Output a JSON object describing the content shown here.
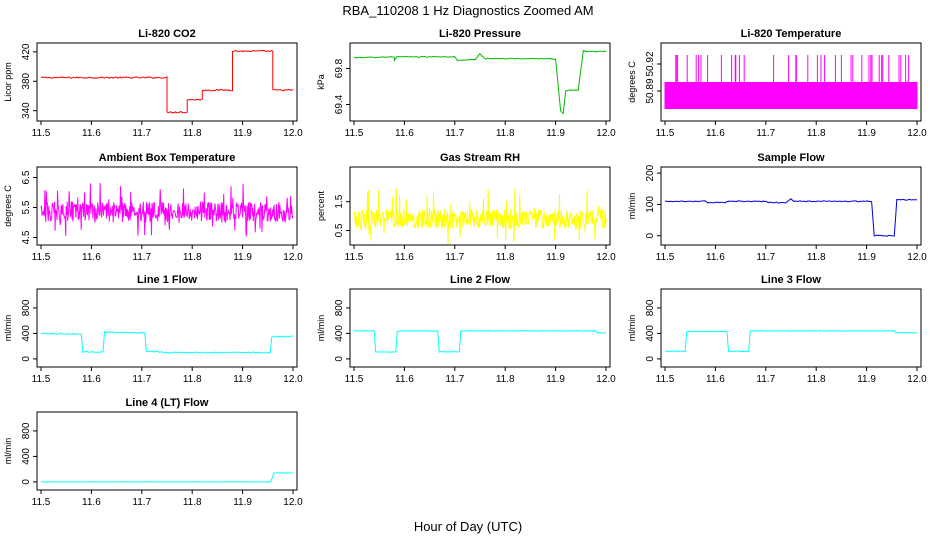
{
  "figure": {
    "title": "RBA_110208  1 Hz Diagnostics Zoomed AM",
    "xlabel": "Hour of Day (UTC)"
  },
  "chart_data": [
    {
      "type": "line",
      "title": "Li-820 CO2",
      "xlabel": "",
      "ylabel": "Licor ppm",
      "color": "#ff0000",
      "xlim": [
        11.5,
        12.0
      ],
      "ylim": [
        330,
        428
      ],
      "xticks": [
        "11.5",
        "11.6",
        "11.7",
        "11.8",
        "11.9",
        "12.0"
      ],
      "yticks": [
        "340",
        "380",
        "420"
      ],
      "series": [
        {
          "noise": 1.0,
          "points": [
            [
              11.5,
              385
            ],
            [
              11.75,
              385
            ],
            [
              11.75,
              338
            ],
            [
              11.79,
              338
            ],
            [
              11.79,
              355
            ],
            [
              11.82,
              355
            ],
            [
              11.82,
              368
            ],
            [
              11.88,
              368
            ],
            [
              11.88,
              421
            ],
            [
              11.96,
              421
            ],
            [
              11.96,
              368
            ],
            [
              12.0,
              368
            ]
          ]
        }
      ]
    },
    {
      "type": "line",
      "title": "Li-820 Pressure",
      "xlabel": "",
      "ylabel": "kPa",
      "color": "#00bb00",
      "xlim": [
        11.5,
        12.0
      ],
      "ylim": [
        69.25,
        70.05
      ],
      "xticks": [
        "11.5",
        "11.6",
        "11.7",
        "11.8",
        "11.9",
        "12.0"
      ],
      "yticks": [
        "69.4",
        "69.8"
      ],
      "series": [
        {
          "noise": 0.004,
          "points": [
            [
              11.5,
              69.92
            ],
            [
              11.58,
              69.93
            ],
            [
              11.58,
              69.89
            ],
            [
              11.585,
              69.93
            ],
            [
              11.7,
              69.93
            ],
            [
              11.705,
              69.89
            ],
            [
              11.74,
              69.9
            ],
            [
              11.75,
              69.96
            ],
            [
              11.76,
              69.91
            ],
            [
              11.89,
              69.91
            ],
            [
              11.9,
              69.9
            ],
            [
              11.91,
              69.33
            ],
            [
              11.915,
              69.3
            ],
            [
              11.92,
              69.55
            ],
            [
              11.93,
              69.56
            ],
            [
              11.945,
              69.56
            ],
            [
              11.955,
              70.0
            ],
            [
              11.96,
              69.99
            ],
            [
              12.0,
              69.99
            ]
          ]
        }
      ]
    },
    {
      "type": "line",
      "title": "Li-820 Temperature",
      "xlabel": "",
      "ylabel": "degrees C",
      "color": "#ff00ff",
      "xlim": [
        11.5,
        12.0
      ],
      "ylim": [
        50.86,
        50.94
      ],
      "xticks": [
        "11.5",
        "11.6",
        "11.7",
        "11.8",
        "11.9",
        "12.0"
      ],
      "yticks": [
        "50.89",
        "50.92"
      ],
      "series": [
        {
          "kind": "binary",
          "low": 50.87,
          "mid": 50.9,
          "high": 50.93,
          "points": []
        }
      ]
    },
    {
      "type": "line",
      "title": "Ambient Box Temperature",
      "xlabel": "",
      "ylabel": "degrees C",
      "color": "#ff00ff",
      "xlim": [
        11.5,
        12.0
      ],
      "ylim": [
        4.35,
        6.75
      ],
      "xticks": [
        "11.5",
        "11.6",
        "11.7",
        "11.8",
        "11.9",
        "12.0"
      ],
      "yticks": [
        "4.5",
        "5.5",
        "6.5"
      ],
      "series": [
        {
          "kind": "noisy",
          "center": 5.35,
          "spread": 0.35,
          "spike": 0.9,
          "points": []
        }
      ]
    },
    {
      "type": "line",
      "title": "Gas Stream RH",
      "xlabel": "",
      "ylabel": "percent",
      "color": "#ffff00",
      "xlim": [
        11.5,
        12.0
      ],
      "ylim": [
        0.1,
        2.6
      ],
      "xticks": [
        "11.5",
        "11.6",
        "11.7",
        "11.8",
        "11.9",
        "12.0"
      ],
      "yticks": [
        "0.5",
        "1.5"
      ],
      "series": [
        {
          "kind": "noisy",
          "center": 0.9,
          "spread": 0.35,
          "spike": 1.0,
          "points": []
        }
      ]
    },
    {
      "type": "line",
      "title": "Sample Flow",
      "xlabel": "",
      "ylabel": "ml/min",
      "color": "#0000dd",
      "xlim": [
        11.5,
        12.0
      ],
      "ylim": [
        -20,
        210
      ],
      "xticks": [
        "11.5",
        "11.6",
        "11.7",
        "11.8",
        "11.9",
        "12.0"
      ],
      "yticks": [
        "0",
        "100",
        "200"
      ],
      "series": [
        {
          "noise": 1.5,
          "points": [
            [
              11.5,
              110
            ],
            [
              11.58,
              110
            ],
            [
              11.585,
              106
            ],
            [
              11.62,
              107
            ],
            [
              11.625,
              110
            ],
            [
              11.7,
              110
            ],
            [
              11.705,
              106
            ],
            [
              11.74,
              106
            ],
            [
              11.745,
              112
            ],
            [
              11.75,
              118
            ],
            [
              11.755,
              110
            ],
            [
              11.91,
              110
            ],
            [
              11.915,
              0
            ],
            [
              11.955,
              0
            ],
            [
              11.96,
              115
            ],
            [
              12.0,
              115
            ]
          ]
        }
      ]
    },
    {
      "type": "line",
      "title": "Line 1 Flow",
      "xlabel": "",
      "ylabel": "ml/min",
      "color": "#00ffff",
      "xlim": [
        11.5,
        12.0
      ],
      "ylim": [
        -80,
        1050
      ],
      "xticks": [
        "11.5",
        "11.6",
        "11.7",
        "11.8",
        "11.9",
        "12.0"
      ],
      "yticks": [
        "0",
        "400",
        "800"
      ],
      "series": [
        {
          "noise": 8,
          "points": [
            [
              11.5,
              400
            ],
            [
              11.58,
              390
            ],
            [
              11.583,
              110
            ],
            [
              11.623,
              110
            ],
            [
              11.626,
              420
            ],
            [
              11.706,
              410
            ],
            [
              11.709,
              120
            ],
            [
              11.75,
              100
            ],
            [
              11.955,
              100
            ],
            [
              11.958,
              350
            ],
            [
              12.0,
              350
            ]
          ]
        }
      ]
    },
    {
      "type": "line",
      "title": "Line 2 Flow",
      "xlabel": "",
      "ylabel": "ml/min",
      "color": "#00ffff",
      "xlim": [
        11.5,
        12.0
      ],
      "ylim": [
        -80,
        1050
      ],
      "xticks": [
        "11.5",
        "11.6",
        "11.7",
        "11.8",
        "11.9",
        "12.0"
      ],
      "yticks": [
        "0",
        "400",
        "800"
      ],
      "series": [
        {
          "noise": 5,
          "points": [
            [
              11.5,
              440
            ],
            [
              11.54,
              440
            ],
            [
              11.543,
              110
            ],
            [
              11.583,
              110
            ],
            [
              11.586,
              440
            ],
            [
              11.666,
              440
            ],
            [
              11.669,
              110
            ],
            [
              11.709,
              110
            ],
            [
              11.712,
              440
            ],
            [
              11.98,
              440
            ],
            [
              11.983,
              410
            ],
            [
              12.0,
              410
            ]
          ]
        }
      ]
    },
    {
      "type": "line",
      "title": "Line 3 Flow",
      "xlabel": "",
      "ylabel": "ml/min",
      "color": "#00ffff",
      "xlim": [
        11.5,
        12.0
      ],
      "ylim": [
        -80,
        1050
      ],
      "xticks": [
        "11.5",
        "11.6",
        "11.7",
        "11.8",
        "11.9",
        "12.0"
      ],
      "yticks": [
        "0",
        "400",
        "800"
      ],
      "series": [
        {
          "noise": 5,
          "points": [
            [
              11.5,
              120
            ],
            [
              11.54,
              120
            ],
            [
              11.543,
              430
            ],
            [
              11.623,
              430
            ],
            [
              11.626,
              120
            ],
            [
              11.666,
              120
            ],
            [
              11.669,
              440
            ],
            [
              11.955,
              440
            ],
            [
              11.958,
              410
            ],
            [
              12.0,
              410
            ]
          ]
        }
      ]
    },
    {
      "type": "line",
      "title": "Line 4 (LT) Flow",
      "xlabel": "",
      "ylabel": "ml/min",
      "color": "#00ffff",
      "xlim": [
        11.5,
        12.0
      ],
      "ylim": [
        -80,
        1050
      ],
      "xticks": [
        "11.5",
        "11.6",
        "11.7",
        "11.8",
        "11.9",
        "12.0"
      ],
      "yticks": [
        "0",
        "400",
        "800"
      ],
      "series": [
        {
          "noise": 1,
          "points": [
            [
              11.5,
              0
            ],
            [
              11.955,
              0
            ],
            [
              11.96,
              80
            ],
            [
              11.962,
              140
            ],
            [
              12.0,
              140
            ]
          ]
        }
      ]
    }
  ]
}
